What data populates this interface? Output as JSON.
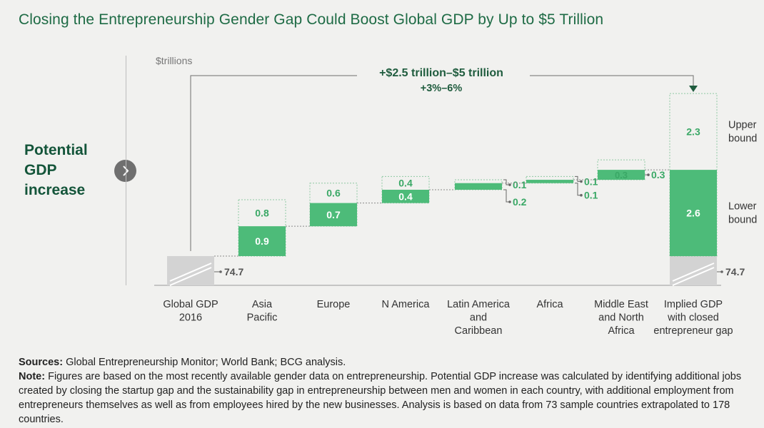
{
  "title": "Closing the Entrepreneurship Gender Gap Could Boost Global GDP by Up to $5 Trillion",
  "side_label": [
    "Potential",
    "GDP",
    "increase"
  ],
  "icons": {
    "side_arrow": "chevron-right-icon"
  },
  "colors": {
    "lower": "#4dbb79",
    "lower_text": "#ffffff",
    "upper_text": "#3aa866",
    "base": "#d3d3d3",
    "dotted": "#8fc9a3",
    "title": "#1e6b45",
    "arrow": "#1f5c3e"
  },
  "chart_data": {
    "type": "waterfall",
    "unit_label": "$trillions",
    "baseline_value": 74.7,
    "baseline_label": "74.7",
    "end_value_label": "74.7",
    "headline": "+$2.5 trillion–$5 trillion",
    "subheadline": "+3%–6%",
    "categories": [
      [
        "Global GDP",
        "2016"
      ],
      [
        "Asia",
        "Pacific"
      ],
      [
        "Europe"
      ],
      [
        "N America"
      ],
      [
        "Latin America",
        "and",
        "Caribbean"
      ],
      [
        "Africa"
      ],
      [
        "Middle East",
        "and North",
        "Africa"
      ],
      [
        "Implied GDP",
        "with closed",
        "entrepreneur gap"
      ]
    ],
    "series": [
      {
        "name": "Lower bound",
        "values": [
          null,
          0.9,
          0.7,
          0.4,
          0.2,
          0.1,
          0.3,
          2.6
        ]
      },
      {
        "name": "Upper bound",
        "values": [
          null,
          0.8,
          0.6,
          0.4,
          0.1,
          0.1,
          0.3,
          2.3
        ]
      }
    ],
    "side_labels": {
      "Latin America and Caribbean": [
        "0.1",
        "0.2"
      ],
      "Africa": [
        "0.1",
        "0.1"
      ],
      "Middle East and North Africa": [
        "0.3"
      ]
    },
    "legend": [
      [
        "Upper",
        "bound"
      ],
      [
        "Lower",
        "bound"
      ]
    ]
  },
  "footnote": {
    "sources_label": "Sources:",
    "sources_text": "Global Entrepreneurship Monitor; World Bank; BCG analysis.",
    "note_label": "Note:",
    "note_text": "Figures are based on the most recently available gender data on entrepreneurship. Potential GDP increase was calculated by identifying additional jobs created by closing the startup gap and the sustainability gap in entrepreneurship between men and women in each country, with additional employment from entrepreneurs themselves as well as from employees hired by the new businesses. Analysis is based on data from 73 sample countries extrapolated to 178 countries."
  }
}
